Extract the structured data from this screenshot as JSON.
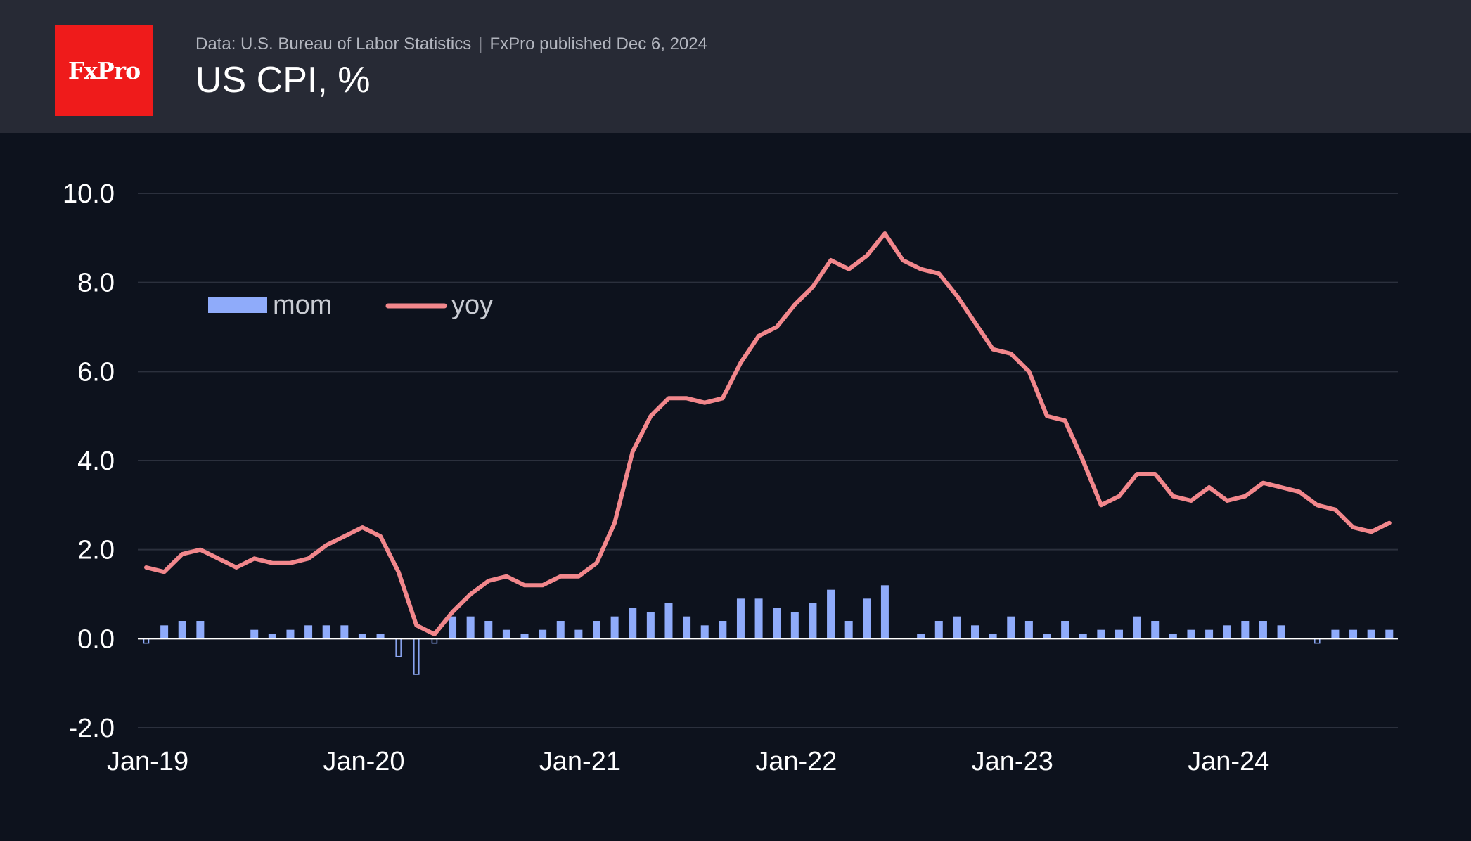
{
  "header": {
    "logo_text": "FxPro",
    "source_text": "Data: U.S. Bureau of Labor Statistics",
    "separator": "|",
    "published_text": "FxPro published Dec 6, 2024",
    "title": "US CPI, %"
  },
  "colors": {
    "background": "#0d121d",
    "header_bg": "#272a35",
    "logo_red": "#ef1b1b",
    "mom_bar": "#8fabfa",
    "yoy_line": "#f2878c",
    "grid": "#2b303d",
    "axis_text": "#ffffff",
    "legend_text": "#c9ccd3"
  },
  "chart_data": {
    "type": "bar+line",
    "title": "US CPI, %",
    "xlabel": "",
    "ylabel": "",
    "ylim": [
      -2.0,
      10.0
    ],
    "y_ticks": [
      10.0,
      8.0,
      6.0,
      4.0,
      2.0,
      0.0,
      -2.0
    ],
    "y_tick_labels": [
      "10.0",
      "8.0",
      "6.0",
      "4.0",
      "2.0",
      "0.0",
      "-2.0"
    ],
    "x_tick_labels": [
      "Jan-19",
      "Jan-20",
      "Jan-21",
      "Jan-22",
      "Jan-23",
      "Jan-24"
    ],
    "x_tick_indices": [
      0,
      12,
      24,
      36,
      48,
      60
    ],
    "grid": true,
    "legend_position": "top-left",
    "months": [
      "Jan-19",
      "Feb-19",
      "Mar-19",
      "Apr-19",
      "May-19",
      "Jun-19",
      "Jul-19",
      "Aug-19",
      "Sep-19",
      "Oct-19",
      "Nov-19",
      "Dec-19",
      "Jan-20",
      "Feb-20",
      "Mar-20",
      "Apr-20",
      "May-20",
      "Jun-20",
      "Jul-20",
      "Aug-20",
      "Sep-20",
      "Oct-20",
      "Nov-20",
      "Dec-20",
      "Jan-21",
      "Feb-21",
      "Mar-21",
      "Apr-21",
      "May-21",
      "Jun-21",
      "Jul-21",
      "Aug-21",
      "Sep-21",
      "Oct-21",
      "Nov-21",
      "Dec-21",
      "Jan-22",
      "Feb-22",
      "Mar-22",
      "Apr-22",
      "May-22",
      "Jun-22",
      "Jul-22",
      "Aug-22",
      "Sep-22",
      "Oct-22",
      "Nov-22",
      "Dec-22",
      "Jan-23",
      "Feb-23",
      "Mar-23",
      "Apr-23",
      "May-23",
      "Jun-23",
      "Jul-23",
      "Aug-23",
      "Sep-23",
      "Oct-23",
      "Nov-23",
      "Dec-23",
      "Jan-24",
      "Feb-24",
      "Mar-24",
      "Apr-24",
      "May-24",
      "Jun-24",
      "Jul-24",
      "Aug-24",
      "Sep-24",
      "Oct-24"
    ],
    "series": [
      {
        "name": "mom",
        "type": "bar",
        "values": [
          -0.1,
          0.3,
          0.4,
          0.4,
          0.0,
          0.0,
          0.2,
          0.1,
          0.2,
          0.3,
          0.3,
          0.3,
          0.1,
          0.1,
          -0.4,
          -0.8,
          -0.1,
          0.5,
          0.5,
          0.4,
          0.2,
          0.1,
          0.2,
          0.4,
          0.2,
          0.4,
          0.5,
          0.7,
          0.6,
          0.8,
          0.5,
          0.3,
          0.4,
          0.9,
          0.9,
          0.7,
          0.6,
          0.8,
          1.1,
          0.4,
          0.9,
          1.2,
          0.0,
          0.1,
          0.4,
          0.5,
          0.3,
          0.1,
          0.5,
          0.4,
          0.1,
          0.4,
          0.1,
          0.2,
          0.2,
          0.5,
          0.4,
          0.1,
          0.2,
          0.2,
          0.3,
          0.4,
          0.4,
          0.3,
          0.0,
          -0.1,
          0.2,
          0.2,
          0.2,
          0.2
        ]
      },
      {
        "name": "yoy",
        "type": "line",
        "values": [
          1.6,
          1.5,
          1.9,
          2.0,
          1.8,
          1.6,
          1.8,
          1.7,
          1.7,
          1.8,
          2.1,
          2.3,
          2.5,
          2.3,
          1.5,
          0.3,
          0.1,
          0.6,
          1.0,
          1.3,
          1.4,
          1.2,
          1.2,
          1.4,
          1.4,
          1.7,
          2.6,
          4.2,
          5.0,
          5.4,
          5.4,
          5.3,
          5.4,
          6.2,
          6.8,
          7.0,
          7.5,
          7.9,
          8.5,
          8.3,
          8.6,
          9.1,
          8.5,
          8.3,
          8.2,
          7.7,
          7.1,
          6.5,
          6.4,
          6.0,
          5.0,
          4.9,
          4.0,
          3.0,
          3.2,
          3.7,
          3.7,
          3.2,
          3.1,
          3.4,
          3.1,
          3.2,
          3.5,
          3.4,
          3.3,
          3.0,
          2.9,
          2.5,
          2.4,
          2.6
        ]
      }
    ]
  }
}
